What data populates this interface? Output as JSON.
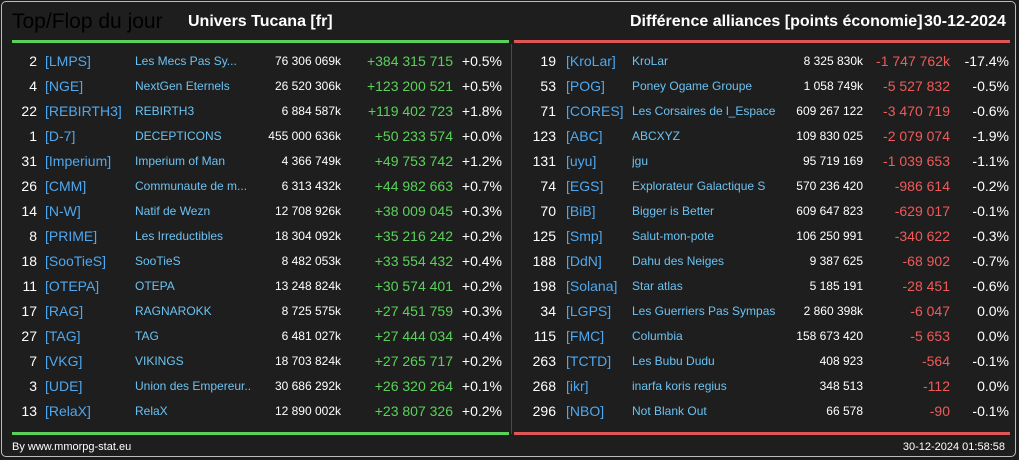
{
  "header": {
    "title": "Top/Flop du jour",
    "universe": "Univers Tucana [fr]",
    "subtitle": "Différence alliances [points économie]",
    "date": "30-12-2024"
  },
  "colors": {
    "background": "#1e1e1e",
    "tag": "#4fa8ef",
    "name": "#6bc2f2",
    "positive": "#5ad25a",
    "negative": "#f05a5a"
  },
  "top": [
    {
      "rank": "2",
      "tag": "[LMPS]",
      "name": "Les Mecs Pas Sy...",
      "points": "76 306 069k",
      "diff": "+384 315 715",
      "pct": "+0.5%"
    },
    {
      "rank": "4",
      "tag": "[NGE]",
      "name": "NextGen Eternels",
      "points": "26 520 306k",
      "diff": "+123 200 521",
      "pct": "+0.5%"
    },
    {
      "rank": "22",
      "tag": "[REBIRTH3]",
      "name": "REBIRTH3",
      "points": "6 884 587k",
      "diff": "+119 402 723",
      "pct": "+1.8%"
    },
    {
      "rank": "1",
      "tag": "[D-7]",
      "name": "DECEPTICONS",
      "points": "455 000 636k",
      "diff": "+50 233 574",
      "pct": "+0.0%"
    },
    {
      "rank": "31",
      "tag": "[Imperium]",
      "name": "Imperium of Man",
      "points": "4 366 749k",
      "diff": "+49 753 742",
      "pct": "+1.2%"
    },
    {
      "rank": "26",
      "tag": "[CMM]",
      "name": "Communaute de m...",
      "points": "6 313 432k",
      "diff": "+44 982 663",
      "pct": "+0.7%"
    },
    {
      "rank": "14",
      "tag": "[N-W]",
      "name": "Natif de Wezn",
      "points": "12 708 926k",
      "diff": "+38 009 045",
      "pct": "+0.3%"
    },
    {
      "rank": "8",
      "tag": "[PRIME]",
      "name": "Les Irreductibles",
      "points": "18 304 092k",
      "diff": "+35 216 242",
      "pct": "+0.2%"
    },
    {
      "rank": "18",
      "tag": "[SooTieS]",
      "name": "SooTieS",
      "points": "8 482 053k",
      "diff": "+33 554 432",
      "pct": "+0.4%"
    },
    {
      "rank": "11",
      "tag": "[OTEPA]",
      "name": "OTEPA",
      "points": "13 248 824k",
      "diff": "+30 574 401",
      "pct": "+0.2%"
    },
    {
      "rank": "17",
      "tag": "[RAG]",
      "name": "RAGNAROKK",
      "points": "8 725 575k",
      "diff": "+27 451 759",
      "pct": "+0.3%"
    },
    {
      "rank": "27",
      "tag": "[TAG]",
      "name": "TAG",
      "points": "6 481 027k",
      "diff": "+27 444 034",
      "pct": "+0.4%"
    },
    {
      "rank": "7",
      "tag": "[VKG]",
      "name": "VIKINGS",
      "points": "18 703 824k",
      "diff": "+27 265 717",
      "pct": "+0.2%"
    },
    {
      "rank": "3",
      "tag": "[UDE]",
      "name": "Union des Empereur...",
      "points": "30 686 292k",
      "diff": "+26 320 264",
      "pct": "+0.1%"
    },
    {
      "rank": "13",
      "tag": "[RelaX]",
      "name": "RelaX",
      "points": "12 890 002k",
      "diff": "+23 807 326",
      "pct": "+0.2%"
    }
  ],
  "flop": [
    {
      "rank": "19",
      "tag": "[KroLar]",
      "name": "KroLar",
      "points": "8 325 830k",
      "diff": "-1 747 762k",
      "pct": "-17.4%"
    },
    {
      "rank": "53",
      "tag": "[POG]",
      "name": "Poney Ogame Groupe",
      "points": "1 058 749k",
      "diff": "-5 527 832",
      "pct": "-0.5%"
    },
    {
      "rank": "71",
      "tag": "[CORES]",
      "name": "Les Corsaires de l_Espace",
      "points": "609 267 122",
      "diff": "-3 470 719",
      "pct": "-0.6%"
    },
    {
      "rank": "123",
      "tag": "[ABC]",
      "name": "ABCXYZ",
      "points": "109 830 025",
      "diff": "-2 079 074",
      "pct": "-1.9%"
    },
    {
      "rank": "131",
      "tag": "[uyu]",
      "name": "jgu",
      "points": "95 719 169",
      "diff": "-1 039 653",
      "pct": "-1.1%"
    },
    {
      "rank": "74",
      "tag": "[EGS]",
      "name": "Explorateur Galactique S",
      "points": "570 236 420",
      "diff": "-986 614",
      "pct": "-0.2%"
    },
    {
      "rank": "70",
      "tag": "[BiB]",
      "name": "Bigger is Better",
      "points": "609 647 823",
      "diff": "-629 017",
      "pct": "-0.1%"
    },
    {
      "rank": "125",
      "tag": "[Smp]",
      "name": "Salut-mon-pote",
      "points": "106 250 991",
      "diff": "-340 622",
      "pct": "-0.3%"
    },
    {
      "rank": "188",
      "tag": "[DdN]",
      "name": "Dahu des Neiges",
      "points": "9 387 625",
      "diff": "-68 902",
      "pct": "-0.7%"
    },
    {
      "rank": "198",
      "tag": "[Solana]",
      "name": "Star atlas",
      "points": "5 185 191",
      "diff": "-28 451",
      "pct": "-0.6%"
    },
    {
      "rank": "34",
      "tag": "[LGPS]",
      "name": "Les Guerriers Pas Sympas",
      "points": "2 860 398k",
      "diff": "-6 047",
      "pct": "0.0%"
    },
    {
      "rank": "115",
      "tag": "[FMC]",
      "name": "Columbia",
      "points": "158 673 420",
      "diff": "-5 653",
      "pct": "0.0%"
    },
    {
      "rank": "263",
      "tag": "[TCTD]",
      "name": "Les Bubu Dudu",
      "points": "408 923",
      "diff": "-564",
      "pct": "-0.1%"
    },
    {
      "rank": "268",
      "tag": "[ikr]",
      "name": "inarfa koris regius",
      "points": "348 513",
      "diff": "-112",
      "pct": "0.0%"
    },
    {
      "rank": "296",
      "tag": "[NBO]",
      "name": "Not Blank Out",
      "points": "66 578",
      "diff": "-90",
      "pct": "-0.1%"
    }
  ],
  "footer": {
    "credit": "By www.mmorpg-stat.eu",
    "timestamp": "30-12-2024 01:58:58"
  }
}
